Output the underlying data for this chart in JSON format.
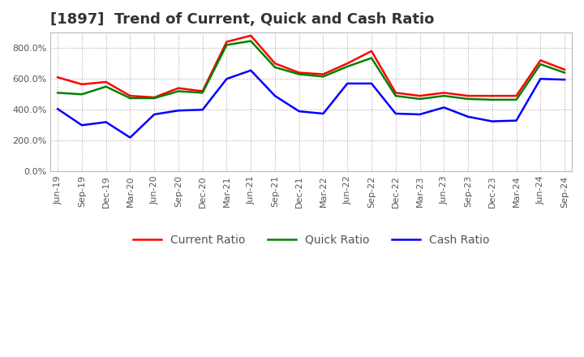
{
  "title": "[1897]  Trend of Current, Quick and Cash Ratio",
  "x_labels": [
    "Jun-19",
    "Sep-19",
    "Dec-19",
    "Mar-20",
    "Jun-20",
    "Sep-20",
    "Dec-20",
    "Mar-21",
    "Jun-21",
    "Sep-21",
    "Dec-21",
    "Mar-22",
    "Jun-22",
    "Sep-22",
    "Dec-22",
    "Mar-23",
    "Jun-23",
    "Sep-23",
    "Dec-23",
    "Mar-24",
    "Jun-24",
    "Sep-24"
  ],
  "current_ratio": [
    610,
    565,
    580,
    490,
    480,
    540,
    520,
    840,
    880,
    700,
    640,
    630,
    700,
    780,
    510,
    490,
    510,
    490,
    490,
    490,
    720,
    660
  ],
  "quick_ratio": [
    510,
    500,
    550,
    475,
    475,
    520,
    510,
    820,
    845,
    675,
    630,
    615,
    680,
    735,
    490,
    470,
    490,
    470,
    465,
    465,
    695,
    640
  ],
  "cash_ratio": [
    405,
    300,
    320,
    220,
    370,
    395,
    400,
    600,
    655,
    490,
    390,
    375,
    570,
    570,
    375,
    370,
    415,
    355,
    325,
    330,
    600,
    595
  ],
  "current_color": "#ff0000",
  "quick_color": "#008000",
  "cash_color": "#0000ff",
  "background_color": "#ffffff",
  "grid_color": "#aaaaaa",
  "ylim": [
    0,
    900
  ],
  "yticks": [
    0,
    200,
    400,
    600,
    800
  ],
  "title_fontsize": 13,
  "legend_fontsize": 10,
  "tick_fontsize": 8
}
